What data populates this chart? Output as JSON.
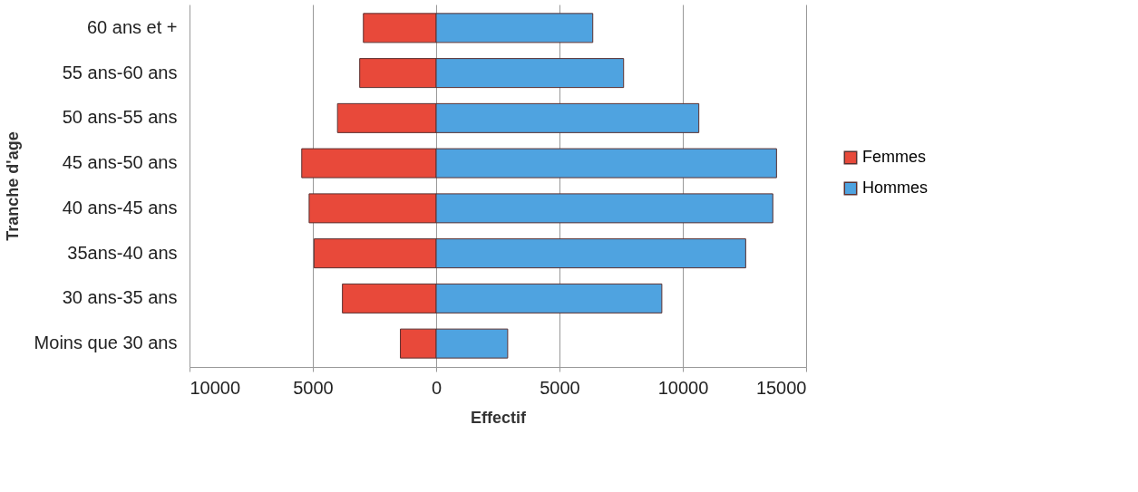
{
  "chart_data": {
    "type": "bar",
    "orientation": "horizontal",
    "xlabel": "Effectif",
    "ylabel": "Tranche d'age",
    "categories": [
      "60 ans et +",
      "55 ans-60 ans",
      "50 ans-55 ans",
      "45 ans-50 ans",
      "40 ans-45 ans",
      "35ans-40 ans",
      "30 ans-35 ans",
      "Moins que 30 ans"
    ],
    "series": [
      {
        "name": "Femmes",
        "color": "#e8493a",
        "values": [
          -2950,
          -3100,
          -4000,
          -5450,
          -5150,
          -4950,
          -3800,
          -1450
        ]
      },
      {
        "name": "Hommes",
        "color": "#4fa3e0",
        "values": [
          6350,
          7600,
          10650,
          13800,
          13650,
          12550,
          9150,
          2900
        ]
      }
    ],
    "xlim": [
      -10000,
      15000
    ],
    "xticks": [
      {
        "value": -10000,
        "label": "10000"
      },
      {
        "value": -5000,
        "label": "5000"
      },
      0,
      5000,
      10000,
      15000
    ],
    "stacked": true,
    "grid": "x",
    "legend": "right"
  }
}
